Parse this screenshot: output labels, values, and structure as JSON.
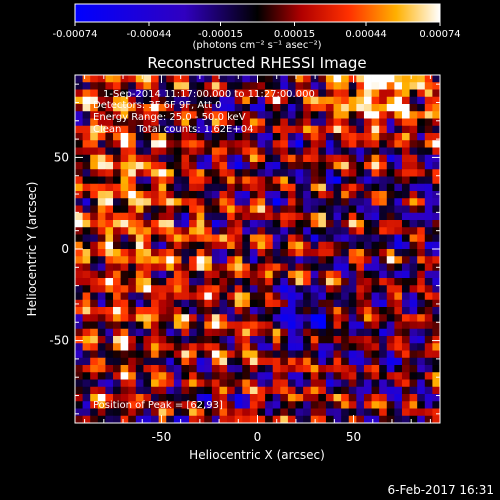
{
  "chart_data": {
    "type": "heatmap",
    "title": "Reconstructed RHESSI Image",
    "xlabel": "Heliocentric X (arcsec)",
    "ylabel": "Heliocentric Y (arcsec)",
    "xlim": [
      -95,
      95
    ],
    "ylim": [
      -95,
      95
    ],
    "x_ticks": [
      -50,
      0,
      50
    ],
    "y_ticks": [
      -50,
      0,
      50
    ],
    "colorbar": {
      "range": [
        -0.00074,
        0.00074
      ],
      "tick_values": [
        -0.00074,
        -0.00044,
        -0.00015,
        0.00015,
        0.00044,
        0.00074
      ],
      "tick_labels": [
        "-0.00074",
        "-0.00044",
        "-0.00015",
        "0.00015",
        "0.00044",
        "0.00074"
      ],
      "units": "(photons cm⁻² s⁻¹ asec⁻²)"
    },
    "annotations": [
      "1-Sep-2014 11:17:00.000 to 11:27:00.000",
      "Detectors: 3F 6F 9F, Att 0",
      "Energy Range: 25.0 - 50.0 keV",
      "Clean     Total counts: 1.62E+04"
    ],
    "peak_label": "Position of Peak = [62,93]",
    "peak": [
      62,
      93
    ],
    "colors": {
      "negative": "#0000ff",
      "zero": "#000000",
      "positive_low": "#c00000",
      "positive_mid": "#ff8800",
      "positive_high": "#ffffff"
    }
  },
  "footer": {
    "timestamp": "6-Feb-2017 16:31"
  }
}
